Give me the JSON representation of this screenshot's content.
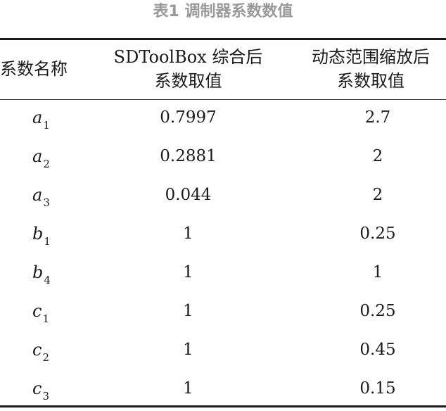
{
  "caption": "表1 调制器系数数值",
  "headers": {
    "name": "系数名称",
    "sd_line1": "SDToolBox 综合后",
    "sd_line2": "系数取值",
    "dyn_line1": "动态范围缩放后",
    "dyn_line2": "系数取值"
  },
  "rows": [
    {
      "letter": "a",
      "sub": "1",
      "sd": "0.7997",
      "dyn": "2.7"
    },
    {
      "letter": "a",
      "sub": "2",
      "sd": "0.2881",
      "dyn": "2"
    },
    {
      "letter": "a",
      "sub": "3",
      "sd": "0.044",
      "dyn": "2"
    },
    {
      "letter": "b",
      "sub": "1",
      "sd": "1",
      "dyn": "0.25"
    },
    {
      "letter": "b",
      "sub": "4",
      "sd": "1",
      "dyn": "1"
    },
    {
      "letter": "c",
      "sub": "1",
      "sd": "1",
      "dyn": "0.25"
    },
    {
      "letter": "c",
      "sub": "2",
      "sd": "1",
      "dyn": "0.45"
    },
    {
      "letter": "c",
      "sub": "3",
      "sd": "1",
      "dyn": "0.15"
    }
  ]
}
